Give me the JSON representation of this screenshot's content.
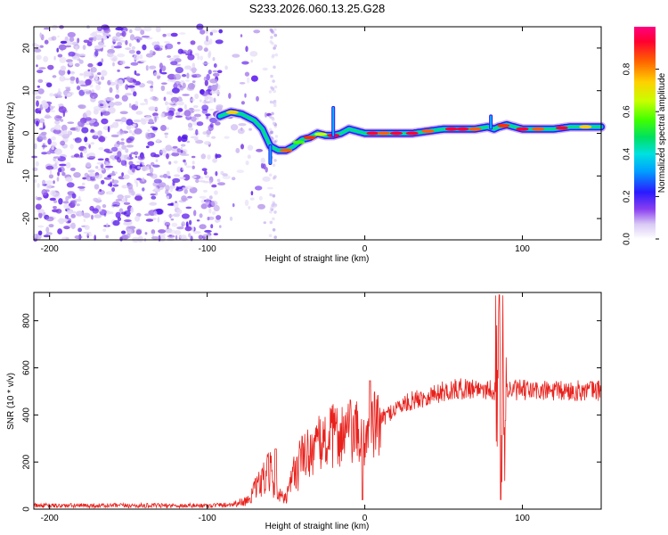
{
  "title": "S233.2026.060.13.25.G28",
  "chart_data": [
    {
      "type": "heatmap",
      "name": "spectrogram",
      "xlabel": "Height of straight line (km)",
      "ylabel": "Frequency (Hz)",
      "xlim": [
        -210,
        150
      ],
      "ylim": [
        -25,
        25
      ],
      "xticks": [
        -200,
        -100,
        0,
        100
      ],
      "yticks": [
        -20,
        -10,
        0,
        10,
        20
      ],
      "colorbar": {
        "label": "Normalized spectral amplitude",
        "range": [
          0,
          1
        ],
        "ticks": [
          0.0,
          0.2,
          0.4,
          0.6,
          0.8
        ]
      },
      "ridge": {
        "description_points_x": [
          -92,
          -85,
          -78,
          -70,
          -65,
          -60,
          -55,
          -50,
          -45,
          -40,
          -35,
          -30,
          -25,
          -20,
          -15,
          -10,
          -5,
          0,
          10,
          20,
          30,
          40,
          50,
          60,
          70,
          78,
          82,
          85,
          90,
          100,
          110,
          120,
          130,
          140,
          150
        ],
        "frequency_hz": [
          4,
          5,
          4.5,
          3,
          1,
          -3,
          -4,
          -4,
          -3,
          -1.5,
          -1,
          0,
          -0.5,
          -0.5,
          0,
          1,
          0.5,
          0,
          0,
          0,
          0,
          0.5,
          1,
          1,
          1,
          1.5,
          1,
          1.5,
          2,
          1,
          1,
          1,
          1.5,
          1.5,
          1.5
        ]
      }
    },
    {
      "type": "line",
      "name": "snr",
      "xlabel": "Height of straight line (km)",
      "ylabel": "SNR (10 * v/v)",
      "xlim": [
        -210,
        150
      ],
      "ylim": [
        0,
        920
      ],
      "xticks": [
        -200,
        -100,
        0,
        100
      ],
      "yticks": [
        0,
        200,
        400,
        600,
        800
      ],
      "color": "#e8211c",
      "envelope": {
        "x": [
          -210,
          -100,
          -85,
          -75,
          -65,
          -60,
          -55,
          -50,
          -45,
          -40,
          -30,
          -20,
          -10,
          0,
          10,
          20,
          30,
          40,
          50,
          60,
          70,
          80,
          84,
          86,
          88,
          90,
          100,
          120,
          150
        ],
        "y": [
          15,
          15,
          20,
          35,
          120,
          160,
          60,
          40,
          150,
          220,
          270,
          310,
          330,
          300,
          380,
          430,
          460,
          480,
          500,
          510,
          515,
          510,
          500,
          480,
          490,
          505,
          505,
          500,
          505
        ]
      }
    }
  ]
}
